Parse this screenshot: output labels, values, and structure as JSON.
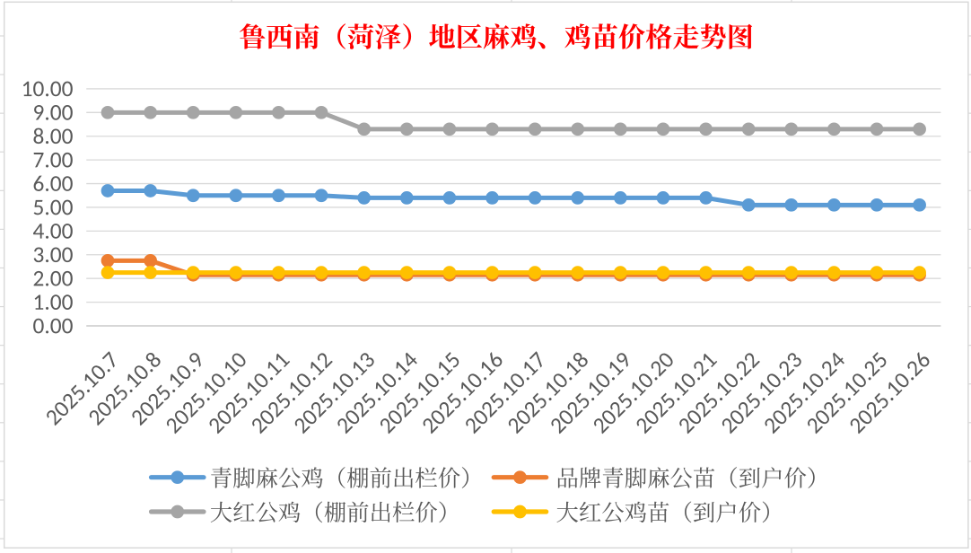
{
  "window": {
    "background": "#FFFFFF"
  },
  "title": {
    "text": "鲁西南（菏泽）地区麻鸡、鸡苗价格走势图",
    "color": "#FF0000"
  },
  "chart_data": {
    "type": "line",
    "title": "鲁西南（菏泽）地区麻鸡、鸡苗价格走势图",
    "x": [
      "2025.10.7",
      "2025.10.8",
      "2025.10.9",
      "2025.10.10",
      "2025.10.11",
      "2025.10.12",
      "2025.10.13",
      "2025.10.14",
      "2025.10.15",
      "2025.10.16",
      "2025.10.17",
      "2025.10.18",
      "2025.10.19",
      "2025.10.20",
      "2025.10.21",
      "2025.10.22",
      "2025.10.23",
      "2025.10.24",
      "2025.10.25",
      "2025.10.26"
    ],
    "series": [
      {
        "name": "青脚麻公鸡（棚前出栏价）",
        "color": "#5B9BD5",
        "values": [
          5.7,
          5.7,
          5.5,
          5.5,
          5.5,
          5.5,
          5.4,
          5.4,
          5.4,
          5.4,
          5.4,
          5.4,
          5.4,
          5.4,
          5.4,
          5.1,
          5.1,
          5.1,
          5.1,
          5.1
        ]
      },
      {
        "name": "品牌青脚麻公苗（到户价）",
        "color": "#ED7D31",
        "values": [
          2.75,
          2.75,
          2.15,
          2.15,
          2.15,
          2.15,
          2.15,
          2.15,
          2.15,
          2.15,
          2.15,
          2.15,
          2.15,
          2.15,
          2.15,
          2.15,
          2.15,
          2.15,
          2.15,
          2.15
        ]
      },
      {
        "name": "大红公鸡（棚前出栏价）",
        "color": "#A5A5A5",
        "values": [
          9.0,
          9.0,
          9.0,
          9.0,
          9.0,
          9.0,
          8.3,
          8.3,
          8.3,
          8.3,
          8.3,
          8.3,
          8.3,
          8.3,
          8.3,
          8.3,
          8.3,
          8.3,
          8.3,
          8.3
        ]
      },
      {
        "name": "大红公鸡苗（到户价）",
        "color": "#FFC000",
        "values": [
          2.25,
          2.25,
          2.25,
          2.25,
          2.25,
          2.25,
          2.25,
          2.25,
          2.25,
          2.25,
          2.25,
          2.25,
          2.25,
          2.25,
          2.25,
          2.25,
          2.25,
          2.25,
          2.25,
          2.25
        ]
      }
    ],
    "ylim": [
      0,
      10
    ],
    "ytick_step": 1,
    "yticks": [
      "0.00",
      "1.00",
      "2.00",
      "3.00",
      "4.00",
      "5.00",
      "6.00",
      "7.00",
      "8.00",
      "9.00",
      "10.00"
    ],
    "xlabel": "",
    "ylabel": "",
    "grid": true,
    "legend_position": "bottom",
    "legend_rows": [
      [
        0,
        1
      ],
      [
        2,
        3
      ]
    ],
    "marker": "circle",
    "axis_label_color": "#595959",
    "gridline_color": "#D9D9D9",
    "axis_line_color": "#BFBFBF"
  }
}
